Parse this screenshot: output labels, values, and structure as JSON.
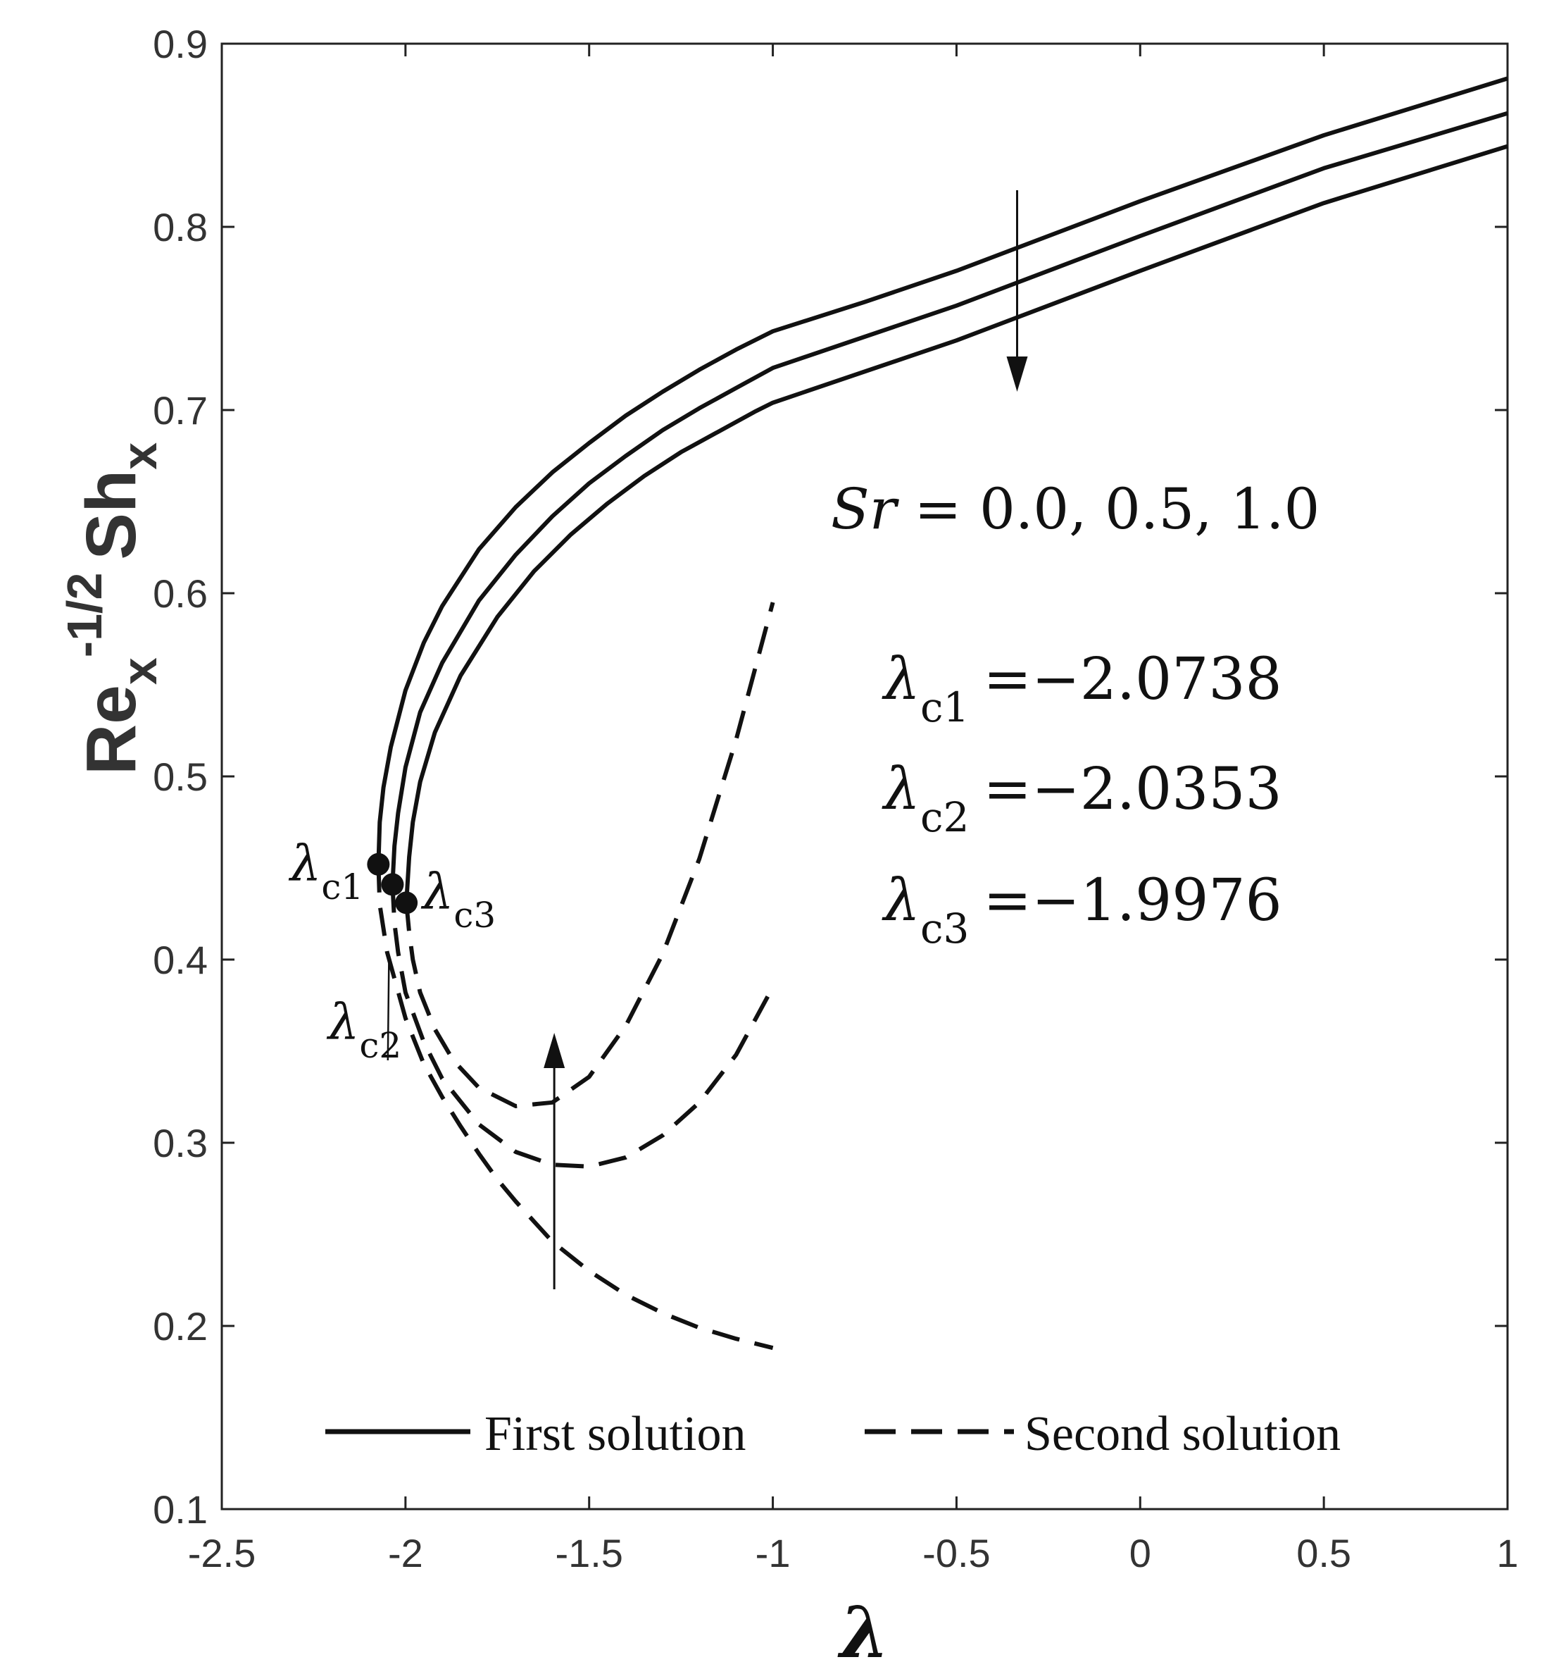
{
  "chart_data": {
    "type": "line",
    "title": "",
    "xlabel": "λ",
    "ylabel": {
      "base": "Re",
      "base_sub": "x",
      "exponent": "-1/2",
      "second": "Sh",
      "second_sub": "x"
    },
    "xlim": [
      -2.5,
      1
    ],
    "ylim": [
      0.1,
      0.9
    ],
    "xticks": [
      -2.5,
      -2,
      -1.5,
      -1,
      -0.5,
      0,
      0.5,
      1
    ],
    "xtick_labels": [
      "-2.5",
      "-2",
      "-1.5",
      "-1",
      "-0.5",
      "0",
      "0.5",
      "1"
    ],
    "yticks": [
      0.1,
      0.2,
      0.3,
      0.4,
      0.5,
      0.6,
      0.7,
      0.8,
      0.9
    ],
    "ytick_labels": [
      "0.1",
      "0.2",
      "0.3",
      "0.4",
      "0.5",
      "0.6",
      "0.7",
      "0.8",
      "0.9"
    ],
    "grid": false,
    "series": [
      {
        "name": "First solution, Sr = 0.0",
        "style": "solid",
        "x": [
          -2.0738,
          -2.07,
          -2.06,
          -2.04,
          -2.0,
          -1.95,
          -1.9,
          -1.8,
          -1.7,
          -1.6,
          -1.5,
          -1.4,
          -1.3,
          -1.2,
          -1.1,
          -1.0,
          -0.75,
          -0.5,
          0.0,
          0.5,
          1.0
        ],
        "y": [
          0.452,
          0.475,
          0.494,
          0.516,
          0.547,
          0.573,
          0.593,
          0.624,
          0.647,
          0.666,
          0.682,
          0.697,
          0.71,
          0.722,
          0.733,
          0.743,
          0.759,
          0.776,
          0.814,
          0.85,
          0.881
        ]
      },
      {
        "name": "First solution, Sr = 0.5",
        "style": "solid",
        "x": [
          -2.0353,
          -2.03,
          -2.02,
          -2.0,
          -1.96,
          -1.9,
          -1.8,
          -1.7,
          -1.6,
          -1.5,
          -1.4,
          -1.3,
          -1.2,
          -1.1,
          -1.0,
          -0.75,
          -0.5,
          0.0,
          0.5,
          1.0
        ],
        "y": [
          0.441,
          0.462,
          0.48,
          0.505,
          0.535,
          0.562,
          0.596,
          0.621,
          0.642,
          0.66,
          0.675,
          0.689,
          0.701,
          0.712,
          0.723,
          0.74,
          0.757,
          0.795,
          0.832,
          0.862
        ]
      },
      {
        "name": "First solution, Sr = 1.0",
        "style": "solid",
        "x": [
          -1.9976,
          -1.99,
          -1.98,
          -1.96,
          -1.92,
          -1.85,
          -1.75,
          -1.65,
          -1.55,
          -1.45,
          -1.35,
          -1.25,
          -1.15,
          -1.05,
          -1.0,
          -0.75,
          -0.5,
          0.0,
          0.5,
          1.0
        ],
        "y": [
          0.431,
          0.456,
          0.475,
          0.497,
          0.524,
          0.555,
          0.587,
          0.612,
          0.632,
          0.649,
          0.664,
          0.677,
          0.688,
          0.699,
          0.704,
          0.721,
          0.738,
          0.776,
          0.813,
          0.844
        ]
      },
      {
        "name": "Second solution, Sr = 0.0",
        "style": "dashed",
        "x": [
          -2.0738,
          -2.07,
          -2.05,
          -2.0,
          -1.95,
          -1.9,
          -1.85,
          -1.8,
          -1.75,
          -1.7,
          -1.6,
          -1.5,
          -1.4,
          -1.3,
          -1.2,
          -1.1,
          -1.0
        ],
        "y": [
          0.452,
          0.43,
          0.404,
          0.368,
          0.343,
          0.325,
          0.309,
          0.294,
          0.28,
          0.268,
          0.246,
          0.23,
          0.217,
          0.207,
          0.199,
          0.193,
          0.188
        ]
      },
      {
        "name": "Second solution, Sr = 0.5",
        "style": "dashed",
        "x": [
          -2.0353,
          -2.03,
          -2.02,
          -2.0,
          -1.95,
          -1.9,
          -1.8,
          -1.7,
          -1.6,
          -1.5,
          -1.4,
          -1.3,
          -1.2,
          -1.1,
          -1.0
        ],
        "y": [
          0.441,
          0.42,
          0.404,
          0.382,
          0.355,
          0.335,
          0.31,
          0.295,
          0.288,
          0.287,
          0.292,
          0.304,
          0.322,
          0.348,
          0.385
        ]
      },
      {
        "name": "Second solution, Sr = 1.0",
        "style": "dashed",
        "x": [
          -1.9976,
          -1.99,
          -1.98,
          -1.96,
          -1.92,
          -1.87,
          -1.8,
          -1.7,
          -1.6,
          -1.5,
          -1.4,
          -1.3,
          -1.2,
          -1.1,
          -1.0
        ],
        "y": [
          0.431,
          0.415,
          0.4,
          0.382,
          0.362,
          0.345,
          0.33,
          0.32,
          0.322,
          0.336,
          0.364,
          0.403,
          0.455,
          0.52,
          0.595
        ]
      }
    ],
    "critical_points": [
      {
        "x": -2.0738,
        "y": 0.452,
        "label": "λ",
        "sub": "c1"
      },
      {
        "x": -2.0353,
        "y": 0.441,
        "label": "λ",
        "sub": "c2"
      },
      {
        "x": -1.9976,
        "y": 0.431,
        "label": "λ",
        "sub": "c3"
      }
    ],
    "annotations": {
      "sr_label": {
        "var": "Sr",
        "rest": " = 0.0, 0.5, 1.0"
      },
      "critical_values": [
        {
          "symbol": "λ",
          "sub": "c1",
          "value": "=−2.0738"
        },
        {
          "symbol": "λ",
          "sub": "c2",
          "value": "=−2.0353"
        },
        {
          "symbol": "λ",
          "sub": "c3",
          "value": "=−1.9976"
        }
      ],
      "arrow_down": {
        "x": -0.335,
        "y_from": 0.82,
        "y_to": 0.71
      },
      "arrow_up": {
        "x": -1.595,
        "y_from": 0.22,
        "y_to": 0.36
      },
      "c2_leader": {
        "x_from": -2.045,
        "y_from": 0.4,
        "x_to": -2.048,
        "y_to": 0.345
      }
    },
    "legend": {
      "position": "bottom",
      "entries": [
        {
          "label": "First solution",
          "style": "solid"
        },
        {
          "label": "Second solution",
          "style": "dashed"
        }
      ]
    }
  }
}
